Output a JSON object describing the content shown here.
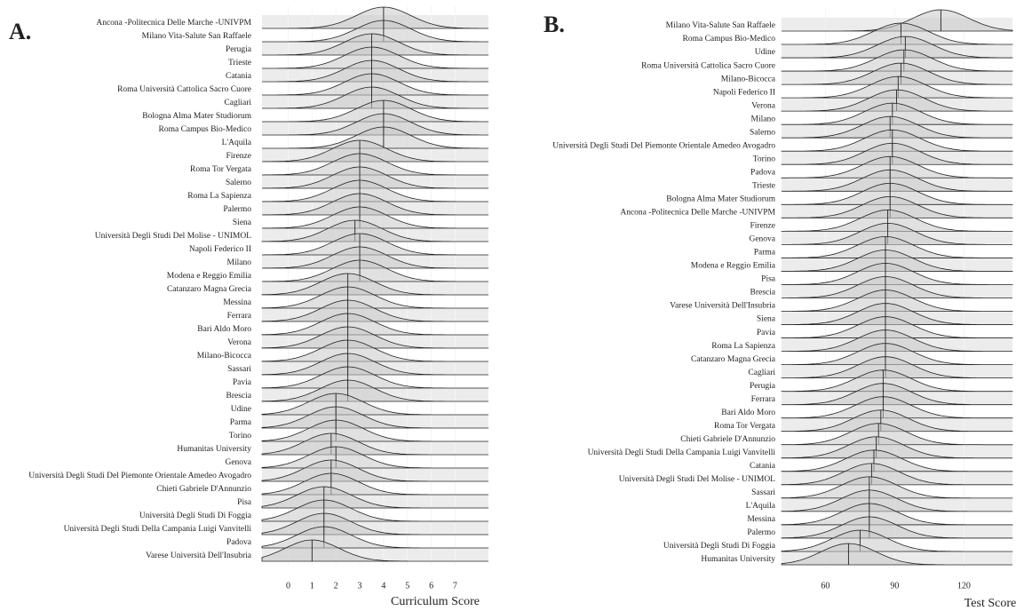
{
  "chart_data": [
    {
      "type": "ridgeline",
      "panel": "A.",
      "xlabel": "Curriculum Score",
      "categories": [
        "Ancona -Politecnica Delle Marche -UNIVPM",
        "Milano Vita-Salute San Raffaele",
        "Perugia",
        "Trieste",
        "Catania",
        "Roma Università Cattolica Sacro Cuore",
        "Cagliari",
        "Bologna Alma Mater Studiorum",
        "Roma Campus Bio-Medico",
        "L'Aquila",
        "Firenze",
        "Roma Tor Vergata",
        "Salerno",
        "Roma La Sapienza",
        "Palermo",
        "Siena",
        "Università Degli Studi Del Molise - UNIMOL",
        "Napoli Federico II",
        "Milano",
        "Modena e Reggio Emilia",
        "Catanzaro Magna Grecia",
        "Messina",
        "Ferrara",
        "Bari Aldo Moro",
        "Verona",
        "Milano-Bicocca",
        "Sassari",
        "Pavia",
        "Brescia",
        "Udine",
        "Parma",
        "Torino",
        "Humanitas University",
        "Genova",
        "Università Degli Studi Del Piemonte Orientale Amedeo Avogadro",
        "Chieti Gabriele D'Annunzio",
        "Pisa",
        "Università Degli Studi Di Foggia",
        "Università Degli Studi Della Campania Luigi Vanvitelli",
        "Padova",
        "Varese Università Dell'Insubria"
      ],
      "values": [
        4,
        4,
        3.5,
        3.5,
        3.5,
        3.5,
        3.5,
        4,
        4,
        4,
        3,
        3,
        3,
        3,
        3,
        3,
        2.8,
        3,
        3,
        3,
        2.5,
        2.5,
        2.5,
        2.5,
        2.5,
        2.5,
        2.5,
        2.5,
        2.5,
        2,
        2,
        2,
        1.8,
        2,
        1.8,
        1.8,
        1.5,
        1.5,
        1.5,
        1.5,
        1
      ],
      "xlim": [
        -1.1,
        8.4
      ],
      "xticks": [
        0,
        1,
        2,
        3,
        4,
        5,
        6,
        7
      ]
    },
    {
      "type": "ridgeline",
      "panel": "B.",
      "xlabel": "Test Score",
      "categories": [
        "Milano Vita-Salute San Raffaele",
        "Roma Campus Bio-Medico",
        "Udine",
        "Roma Università Cattolica Sacro Cuore",
        "Milano-Bicocca",
        "Napoli Federico II",
        "Verona",
        "Milano",
        "Salerno",
        "Università Degli Studi Del Piemonte Orientale Amedeo Avogadro",
        "Torino",
        "Padova",
        "Trieste",
        "Bologna Alma Mater Studiorum",
        "Ancona -Politecnica Delle Marche -UNIVPM",
        "Firenze",
        "Genova",
        "Parma",
        "Modena e Reggio Emilia",
        "Pisa",
        "Brescia",
        "Varese Università Dell'Insubria",
        "Siena",
        "Pavia",
        "Roma La Sapienza",
        "Catanzaro Magna Grecia",
        "Cagliari",
        "Perugia",
        "Ferrara",
        "Bari Aldo Moro",
        "Roma Tor Vergata",
        "Chieti Gabriele D'Annunzio",
        "Università Degli Studi Della Campania Luigi Vanvitelli",
        "Catania",
        "Università Degli Studi Del Molise - UNIMOL",
        "Sassari",
        "L'Aquila",
        "Messina",
        "Palermo",
        "Università Degli Studi Di Foggia",
        "Humanitas University"
      ],
      "values": [
        110,
        92.7,
        94.6,
        94,
        92.7,
        91.5,
        90.8,
        89,
        88,
        89,
        89,
        88,
        88,
        88,
        88,
        87,
        87,
        86,
        86,
        86,
        86,
        86,
        86,
        86,
        86,
        86,
        86,
        85,
        85,
        85,
        84,
        83,
        82,
        81,
        80,
        79,
        79,
        79,
        79,
        75,
        70
      ],
      "xlim": [
        41,
        141
      ],
      "xticks": [
        60,
        90,
        120
      ]
    }
  ]
}
